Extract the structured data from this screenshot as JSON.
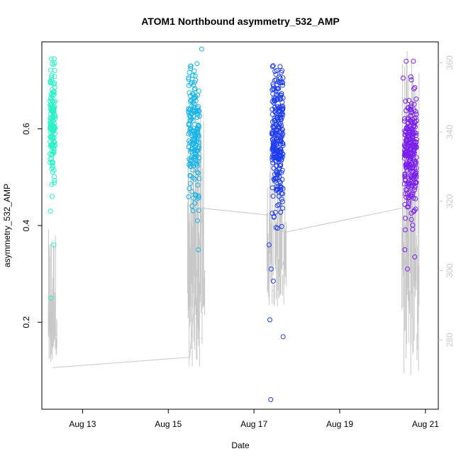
{
  "chart_data": {
    "type": "scatter",
    "title": "ATOM1 Northbound asymmetry_532_AMP",
    "xlabel": "Date",
    "ylabel": "asymmetry_532_AMP",
    "x_ticks": [
      "Aug 13",
      "Aug 15",
      "Aug 17",
      "Aug 19",
      "Aug 21"
    ],
    "x_range_days": [
      12.05,
      21.3
    ],
    "y_left_ticks": [
      "0.2",
      "0.4",
      "0.6"
    ],
    "y_left_range": [
      0.02,
      0.78
    ],
    "y_right_ticks": [
      "280",
      "300",
      "320",
      "340",
      "360"
    ],
    "y_right_range": [
      260,
      366
    ],
    "grid": false,
    "colors": {
      "axes": "#000000",
      "right_axis": "#c8c8c8",
      "secondary_line": "#c8c8c8",
      "cluster_1": "#2ef0c8",
      "cluster_2": "#1ab4e6",
      "cluster_3": "#1e3cf0",
      "cluster_4": "#7a1ef0"
    },
    "series": [
      {
        "marker": "open-circle",
        "clusters": [
          {
            "color_key": "cluster_1",
            "x_center": 12.3,
            "x_spread": 0.06,
            "y_center": 0.615,
            "y_sd": 0.055,
            "n": 150,
            "outliers": [
              [
                12.27,
                0.745
              ],
              [
                12.34,
                0.745
              ],
              [
                12.25,
                0.43
              ],
              [
                12.29,
                0.46
              ],
              [
                12.33,
                0.36
              ],
              [
                12.26,
                0.25
              ],
              [
                12.31,
                0.52
              ],
              [
                12.28,
                0.485
              ]
            ]
          },
          {
            "color_key": "cluster_2",
            "x_center": 15.6,
            "x_spread": 0.13,
            "y_center": 0.585,
            "y_sd": 0.06,
            "n": 190,
            "outliers": [
              [
                15.78,
                0.765
              ],
              [
                15.67,
                0.735
              ],
              [
                15.68,
                0.41
              ],
              [
                15.7,
                0.35
              ],
              [
                15.55,
                0.47
              ]
            ]
          },
          {
            "color_key": "cluster_3",
            "x_center": 17.55,
            "x_spread": 0.13,
            "y_center": 0.585,
            "y_sd": 0.075,
            "n": 260,
            "outliers": [
              [
                17.37,
                0.205
              ],
              [
                17.68,
                0.17
              ],
              [
                17.39,
                0.04
              ],
              [
                17.45,
                0.285
              ],
              [
                17.4,
                0.31
              ],
              [
                17.35,
                0.36
              ]
            ]
          },
          {
            "color_key": "cluster_4",
            "x_center": 20.65,
            "x_spread": 0.14,
            "y_center": 0.54,
            "y_sd": 0.06,
            "n": 260,
            "outliers": [
              [
                20.55,
                0.74
              ],
              [
                20.72,
                0.74
              ],
              [
                20.48,
                0.705
              ],
              [
                20.58,
                0.31
              ],
              [
                20.75,
                0.335
              ],
              [
                20.52,
                0.35
              ]
            ]
          }
        ]
      },
      {
        "name": "secondary",
        "axis": "right",
        "line_points": [
          [
            12.3,
            272
          ],
          [
            15.5,
            275
          ],
          [
            15.8,
            318
          ],
          [
            17.35,
            316
          ],
          [
            17.7,
            311
          ],
          [
            20.45,
            318
          ]
        ],
        "spike_regions": [
          {
            "x_start": 12.2,
            "x_end": 12.4,
            "y_low": 272,
            "y_high": 312
          },
          {
            "x_start": 15.45,
            "x_end": 15.85,
            "y_low": 272,
            "y_high": 348
          },
          {
            "x_start": 17.3,
            "x_end": 17.75,
            "y_low": 288,
            "y_high": 338
          },
          {
            "x_start": 20.45,
            "x_end": 20.85,
            "y_low": 269,
            "y_high": 364
          }
        ]
      }
    ]
  }
}
